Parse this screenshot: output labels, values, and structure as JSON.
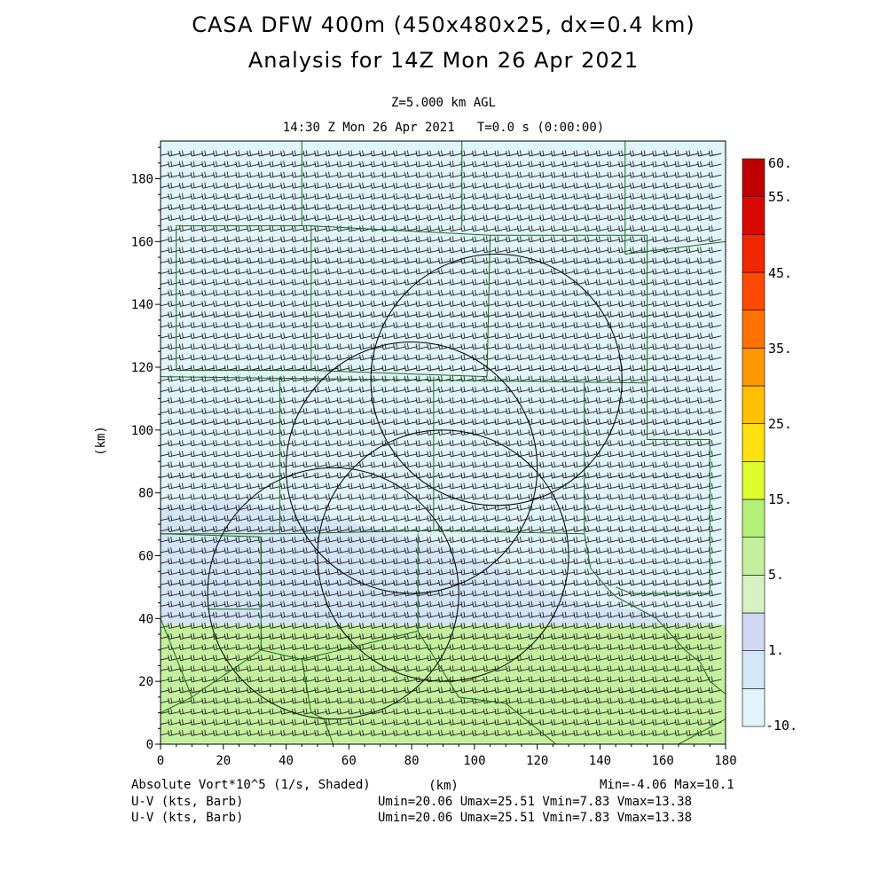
{
  "title": {
    "line1": "CASA DFW 400m (450x480x25, dx=0.4 km)",
    "line2": "Analysis for 14Z Mon 26 Apr 2021",
    "level": "Z=5.000 km AGL",
    "time": "14:30 Z Mon 26 Apr 2021   T=0.0 s (0:00:00)"
  },
  "axes": {
    "x_ticks": [
      "0",
      "20",
      "40",
      "60",
      "80",
      "100",
      "120",
      "140",
      "160",
      "180"
    ],
    "y_ticks": [
      "0",
      "20",
      "40",
      "60",
      "80",
      "100",
      "120",
      "140",
      "160",
      "180"
    ],
    "x_label": "(km)",
    "y_label": "(km)",
    "x_range": [
      0,
      180
    ],
    "y_range": [
      0,
      192
    ]
  },
  "colorbar": {
    "labels": [
      "60.",
      "55.",
      "45.",
      "35.",
      "25.",
      "15.",
      "5.",
      "1.",
      "-10."
    ],
    "colors": [
      "#e0f4fa",
      "#d2e8f6",
      "#d0d8f4",
      "#d6f2c2",
      "#c4f09e",
      "#b4f078",
      "#dcfc2e",
      "#ffe010",
      "#ffc000",
      "#ff9800",
      "#ff7200",
      "#ff4a00",
      "#f02800",
      "#d80a00",
      "#be0000"
    ]
  },
  "field": {
    "name": "Absolute Vort*10^5 (1/s, Shaded)",
    "min_max": "Min=-4.06 Max=10.1",
    "shaded_regions": [
      {
        "label": "5 to 10 band (green)",
        "y_from_km": 0,
        "y_to_km": 38,
        "color": "#c4f09e"
      },
      {
        "label": "1 to 5 band (lavender)",
        "y_from_km": 38,
        "y_to_km": 68,
        "color": "#d2e4f6"
      },
      {
        "label": "-10 to 1 background",
        "color": "#e0f4fa"
      }
    ]
  },
  "barbs": {
    "line1_label": "U-V (kts, Barb)",
    "line1_stats": "Umin=20.06 Umax=25.51 Vmin=7.83 Vmax=13.38",
    "line2_label": "U-V (kts, Barb)",
    "line2_stats": "Umin=20.06 Umax=25.51 Vmin=7.83 Vmax=13.38"
  },
  "radars": [
    {
      "name": "radar-1",
      "center_km": [
        107,
        116
      ],
      "radius_km": 40
    },
    {
      "name": "radar-2",
      "center_km": [
        80,
        88
      ],
      "radius_km": 40
    },
    {
      "name": "radar-3",
      "center_km": [
        90,
        60
      ],
      "radius_km": 40
    },
    {
      "name": "radar-4",
      "center_km": [
        55,
        48
      ],
      "radius_km": 40
    }
  ],
  "colors": {
    "county_lines": "#1a6b1a",
    "radar_circles": "#000000",
    "barbs": "#222222"
  }
}
